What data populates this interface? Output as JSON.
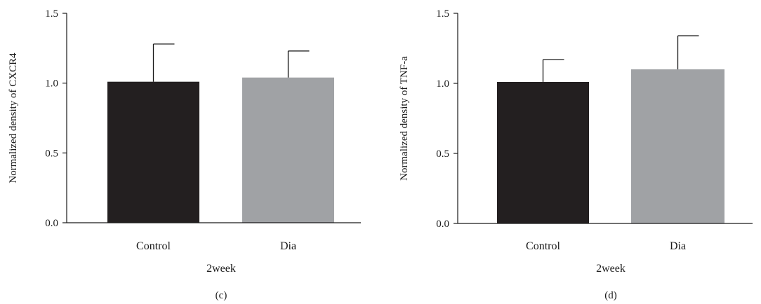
{
  "charts": [
    {
      "panel_label": "(c)",
      "chart_data": {
        "type": "bar",
        "categories": [
          "Control",
          "Dia"
        ],
        "values": [
          1.01,
          1.04
        ],
        "errors": [
          0.27,
          0.19
        ],
        "colors": [
          "#231f20",
          "#a0a2a5"
        ],
        "xlabel": "2week",
        "ylabel": "Normalized density of CXCR4",
        "ylim": [
          0,
          1.5
        ],
        "yticks": [
          "0.0",
          "0.5",
          "1.0",
          "1.5"
        ],
        "grid": false
      }
    },
    {
      "panel_label": "(d)",
      "chart_data": {
        "type": "bar",
        "categories": [
          "Control",
          "Dia"
        ],
        "values": [
          1.01,
          1.1
        ],
        "errors": [
          0.16,
          0.24
        ],
        "colors": [
          "#231f20",
          "#a0a2a5"
        ],
        "xlabel": "2week",
        "ylabel": "Normalized density of TNF-a",
        "ylim": [
          0,
          1.5
        ],
        "yticks": [
          "0.0",
          "0.5",
          "1.0",
          "1.5"
        ],
        "grid": false
      }
    }
  ]
}
